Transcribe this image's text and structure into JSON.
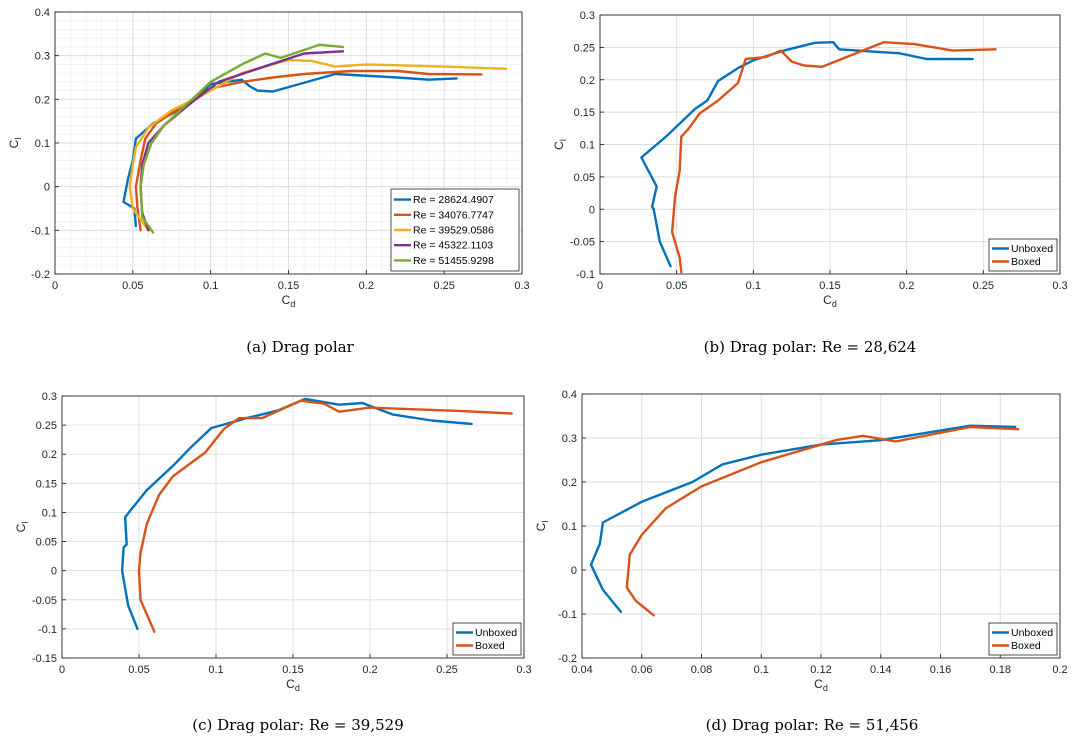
{
  "captions": [
    "(a)  Drag polar",
    "(b)  Drag polar:  Re = 28,624",
    "(c)  Drag polar:  Re = 39,529",
    "(d)  Drag polar:  Re = 51,456"
  ],
  "colors": {
    "blue": "#0072BD",
    "orange": "#D95319",
    "yellow": "#EDB120",
    "purple": "#7E2F8E",
    "green": "#77AC30"
  },
  "chart_data": [
    {
      "type": "line",
      "title": "",
      "xlabel": "C_d",
      "ylabel": "C_l",
      "xlim": [
        0,
        0.3
      ],
      "ylim": [
        -0.2,
        0.4
      ],
      "xticks": [
        0,
        0.05,
        0.1,
        0.15,
        0.2,
        0.25,
        0.3
      ],
      "xtick_labels": [
        "0",
        "0.05",
        "0.1",
        "0.15",
        "0.2",
        "0.25",
        "0.3"
      ],
      "yticks": [
        -0.2,
        -0.1,
        0,
        0.1,
        0.2,
        0.3,
        0.4
      ],
      "ytick_labels": [
        "-0.2",
        "-0.1",
        "0",
        "0.1",
        "0.2",
        "0.3",
        "0.4"
      ],
      "grid": "fine",
      "legend_position": "bottom-right",
      "series": [
        {
          "name": "Re = 28624.4907",
          "color": "#0072BD",
          "x": [
            0.052,
            0.051,
            0.044,
            0.047,
            0.05,
            0.052,
            0.063,
            0.085,
            0.1,
            0.12,
            0.125,
            0.13,
            0.14,
            0.18,
            0.22,
            0.24,
            0.258
          ],
          "y": [
            -0.09,
            -0.05,
            -0.035,
            0.02,
            0.06,
            0.11,
            0.145,
            0.185,
            0.235,
            0.245,
            0.23,
            0.22,
            0.218,
            0.258,
            0.25,
            0.245,
            0.248
          ]
        },
        {
          "name": "Re = 34076.7747",
          "color": "#D95319",
          "x": [
            0.055,
            0.053,
            0.052,
            0.055,
            0.058,
            0.065,
            0.08,
            0.1,
            0.12,
            0.14,
            0.16,
            0.19,
            0.22,
            0.24,
            0.274
          ],
          "y": [
            -0.1,
            -0.05,
            0.0,
            0.06,
            0.11,
            0.145,
            0.18,
            0.225,
            0.24,
            0.25,
            0.258,
            0.265,
            0.265,
            0.258,
            0.257
          ]
        },
        {
          "name": "Re = 39529.0586",
          "color": "#EDB120",
          "x": [
            0.06,
            0.05,
            0.048,
            0.05,
            0.052,
            0.06,
            0.075,
            0.095,
            0.12,
            0.15,
            0.165,
            0.18,
            0.2,
            0.25,
            0.29
          ],
          "y": [
            -0.1,
            -0.05,
            0.0,
            0.05,
            0.09,
            0.135,
            0.175,
            0.21,
            0.26,
            0.29,
            0.288,
            0.275,
            0.28,
            0.275,
            0.27
          ]
        },
        {
          "name": "Re = 45322.1103",
          "color": "#7E2F8E",
          "x": [
            0.06,
            0.056,
            0.055,
            0.056,
            0.06,
            0.07,
            0.085,
            0.105,
            0.13,
            0.16,
            0.185
          ],
          "y": [
            -0.1,
            -0.06,
            0.0,
            0.05,
            0.1,
            0.14,
            0.185,
            0.24,
            0.27,
            0.305,
            0.31
          ]
        },
        {
          "name": "Re = 51455.9298",
          "color": "#77AC30",
          "x": [
            0.063,
            0.056,
            0.055,
            0.057,
            0.062,
            0.07,
            0.085,
            0.1,
            0.12,
            0.135,
            0.145,
            0.17,
            0.185
          ],
          "y": [
            -0.105,
            -0.07,
            0.0,
            0.05,
            0.1,
            0.14,
            0.19,
            0.24,
            0.28,
            0.305,
            0.295,
            0.325,
            0.32
          ]
        }
      ]
    },
    {
      "type": "line",
      "title": "",
      "xlabel": "C_d",
      "ylabel": "C_l",
      "xlim": [
        0,
        0.3
      ],
      "ylim": [
        -0.1,
        0.3
      ],
      "xticks": [
        0,
        0.05,
        0.1,
        0.15,
        0.2,
        0.25,
        0.3
      ],
      "xtick_labels": [
        "0",
        "0.05",
        "0.1",
        "0.15",
        "0.2",
        "0.25",
        "0.3"
      ],
      "yticks": [
        -0.1,
        -0.05,
        0,
        0.05,
        0.1,
        0.15,
        0.2,
        0.25,
        0.3
      ],
      "ytick_labels": [
        "-0.1",
        "-0.05",
        "0",
        "0.05",
        "0.1",
        "0.15",
        "0.2",
        "0.25",
        "0.3"
      ],
      "grid": "major",
      "legend_position": "bottom-right",
      "series": [
        {
          "name": "Unboxed",
          "color": "#0072BD",
          "x": [
            0.046,
            0.039,
            0.035,
            0.034,
            0.037,
            0.027,
            0.043,
            0.062,
            0.07,
            0.077,
            0.09,
            0.1,
            0.12,
            0.14,
            0.152,
            0.156,
            0.175,
            0.195,
            0.213,
            0.243
          ],
          "y": [
            -0.088,
            -0.05,
            0.0,
            0.004,
            0.035,
            0.08,
            0.112,
            0.155,
            0.168,
            0.198,
            0.218,
            0.23,
            0.245,
            0.257,
            0.258,
            0.247,
            0.244,
            0.241,
            0.232,
            0.232
          ]
        },
        {
          "name": "Boxed",
          "color": "#D95319",
          "x": [
            0.053,
            0.052,
            0.047,
            0.049,
            0.052,
            0.053,
            0.058,
            0.065,
            0.077,
            0.09,
            0.095,
            0.108,
            0.118,
            0.125,
            0.133,
            0.145,
            0.185,
            0.205,
            0.23,
            0.258
          ],
          "y": [
            -0.097,
            -0.075,
            -0.035,
            0.02,
            0.06,
            0.112,
            0.125,
            0.148,
            0.168,
            0.195,
            0.232,
            0.235,
            0.245,
            0.228,
            0.222,
            0.22,
            0.258,
            0.255,
            0.245,
            0.247
          ]
        }
      ]
    },
    {
      "type": "line",
      "title": "",
      "xlabel": "C_d",
      "ylabel": "C_l",
      "xlim": [
        0,
        0.3
      ],
      "ylim": [
        -0.15,
        0.3
      ],
      "xticks": [
        0,
        0.05,
        0.1,
        0.15,
        0.2,
        0.25,
        0.3
      ],
      "xtick_labels": [
        "0",
        "0.05",
        "0.1",
        "0.15",
        "0.2",
        "0.25",
        "0.3"
      ],
      "yticks": [
        -0.15,
        -0.1,
        -0.05,
        0,
        0.05,
        0.1,
        0.15,
        0.2,
        0.25,
        0.3
      ],
      "ytick_labels": [
        "-0.15",
        "-0.1",
        "-0.05",
        "0",
        "0.05",
        "0.1",
        "0.15",
        "0.2",
        "0.25",
        "0.3"
      ],
      "grid": "major",
      "legend_position": "bottom-right",
      "series": [
        {
          "name": "Unboxed",
          "color": "#0072BD",
          "x": [
            0.049,
            0.043,
            0.039,
            0.04,
            0.042,
            0.041,
            0.055,
            0.072,
            0.083,
            0.097,
            0.12,
            0.14,
            0.158,
            0.18,
            0.195,
            0.215,
            0.24,
            0.266
          ],
          "y": [
            -0.1,
            -0.06,
            0.0,
            0.04,
            0.045,
            0.092,
            0.138,
            0.18,
            0.21,
            0.245,
            0.262,
            0.275,
            0.295,
            0.285,
            0.288,
            0.268,
            0.258,
            0.252
          ]
        },
        {
          "name": "Boxed",
          "color": "#D95319",
          "x": [
            0.06,
            0.051,
            0.05,
            0.051,
            0.055,
            0.063,
            0.072,
            0.093,
            0.105,
            0.115,
            0.13,
            0.155,
            0.17,
            0.18,
            0.2,
            0.26,
            0.292
          ],
          "y": [
            -0.105,
            -0.05,
            0.0,
            0.03,
            0.08,
            0.13,
            0.162,
            0.203,
            0.243,
            0.262,
            0.262,
            0.292,
            0.287,
            0.273,
            0.28,
            0.274,
            0.27
          ]
        }
      ]
    },
    {
      "type": "line",
      "title": "",
      "xlabel": "C_d",
      "ylabel": "C_l",
      "xlim": [
        0.04,
        0.2
      ],
      "ylim": [
        -0.2,
        0.4
      ],
      "xticks": [
        0.04,
        0.06,
        0.08,
        0.1,
        0.12,
        0.14,
        0.16,
        0.18,
        0.2
      ],
      "xtick_labels": [
        "0.04",
        "0.06",
        "0.08",
        "0.1",
        "0.12",
        "0.14",
        "0.16",
        "0.18",
        "0.2"
      ],
      "yticks": [
        -0.2,
        -0.1,
        0,
        0.1,
        0.2,
        0.3,
        0.4
      ],
      "ytick_labels": [
        "-0.2",
        "-0.1",
        "0",
        "0.1",
        "0.2",
        "0.3",
        "0.4"
      ],
      "grid": "major",
      "legend_position": "bottom-right",
      "series": [
        {
          "name": "Unboxed",
          "color": "#0072BD",
          "x": [
            0.053,
            0.047,
            0.043,
            0.046,
            0.047,
            0.06,
            0.077,
            0.087,
            0.1,
            0.12,
            0.14,
            0.17,
            0.185
          ],
          "y": [
            -0.095,
            -0.045,
            0.012,
            0.06,
            0.108,
            0.155,
            0.2,
            0.24,
            0.262,
            0.285,
            0.295,
            0.328,
            0.325
          ]
        },
        {
          "name": "Boxed",
          "color": "#D95319",
          "x": [
            0.064,
            0.058,
            0.055,
            0.056,
            0.06,
            0.068,
            0.08,
            0.1,
            0.125,
            0.134,
            0.145,
            0.17,
            0.186
          ],
          "y": [
            -0.103,
            -0.07,
            -0.04,
            0.035,
            0.08,
            0.14,
            0.19,
            0.245,
            0.295,
            0.305,
            0.292,
            0.325,
            0.32
          ]
        }
      ]
    }
  ]
}
